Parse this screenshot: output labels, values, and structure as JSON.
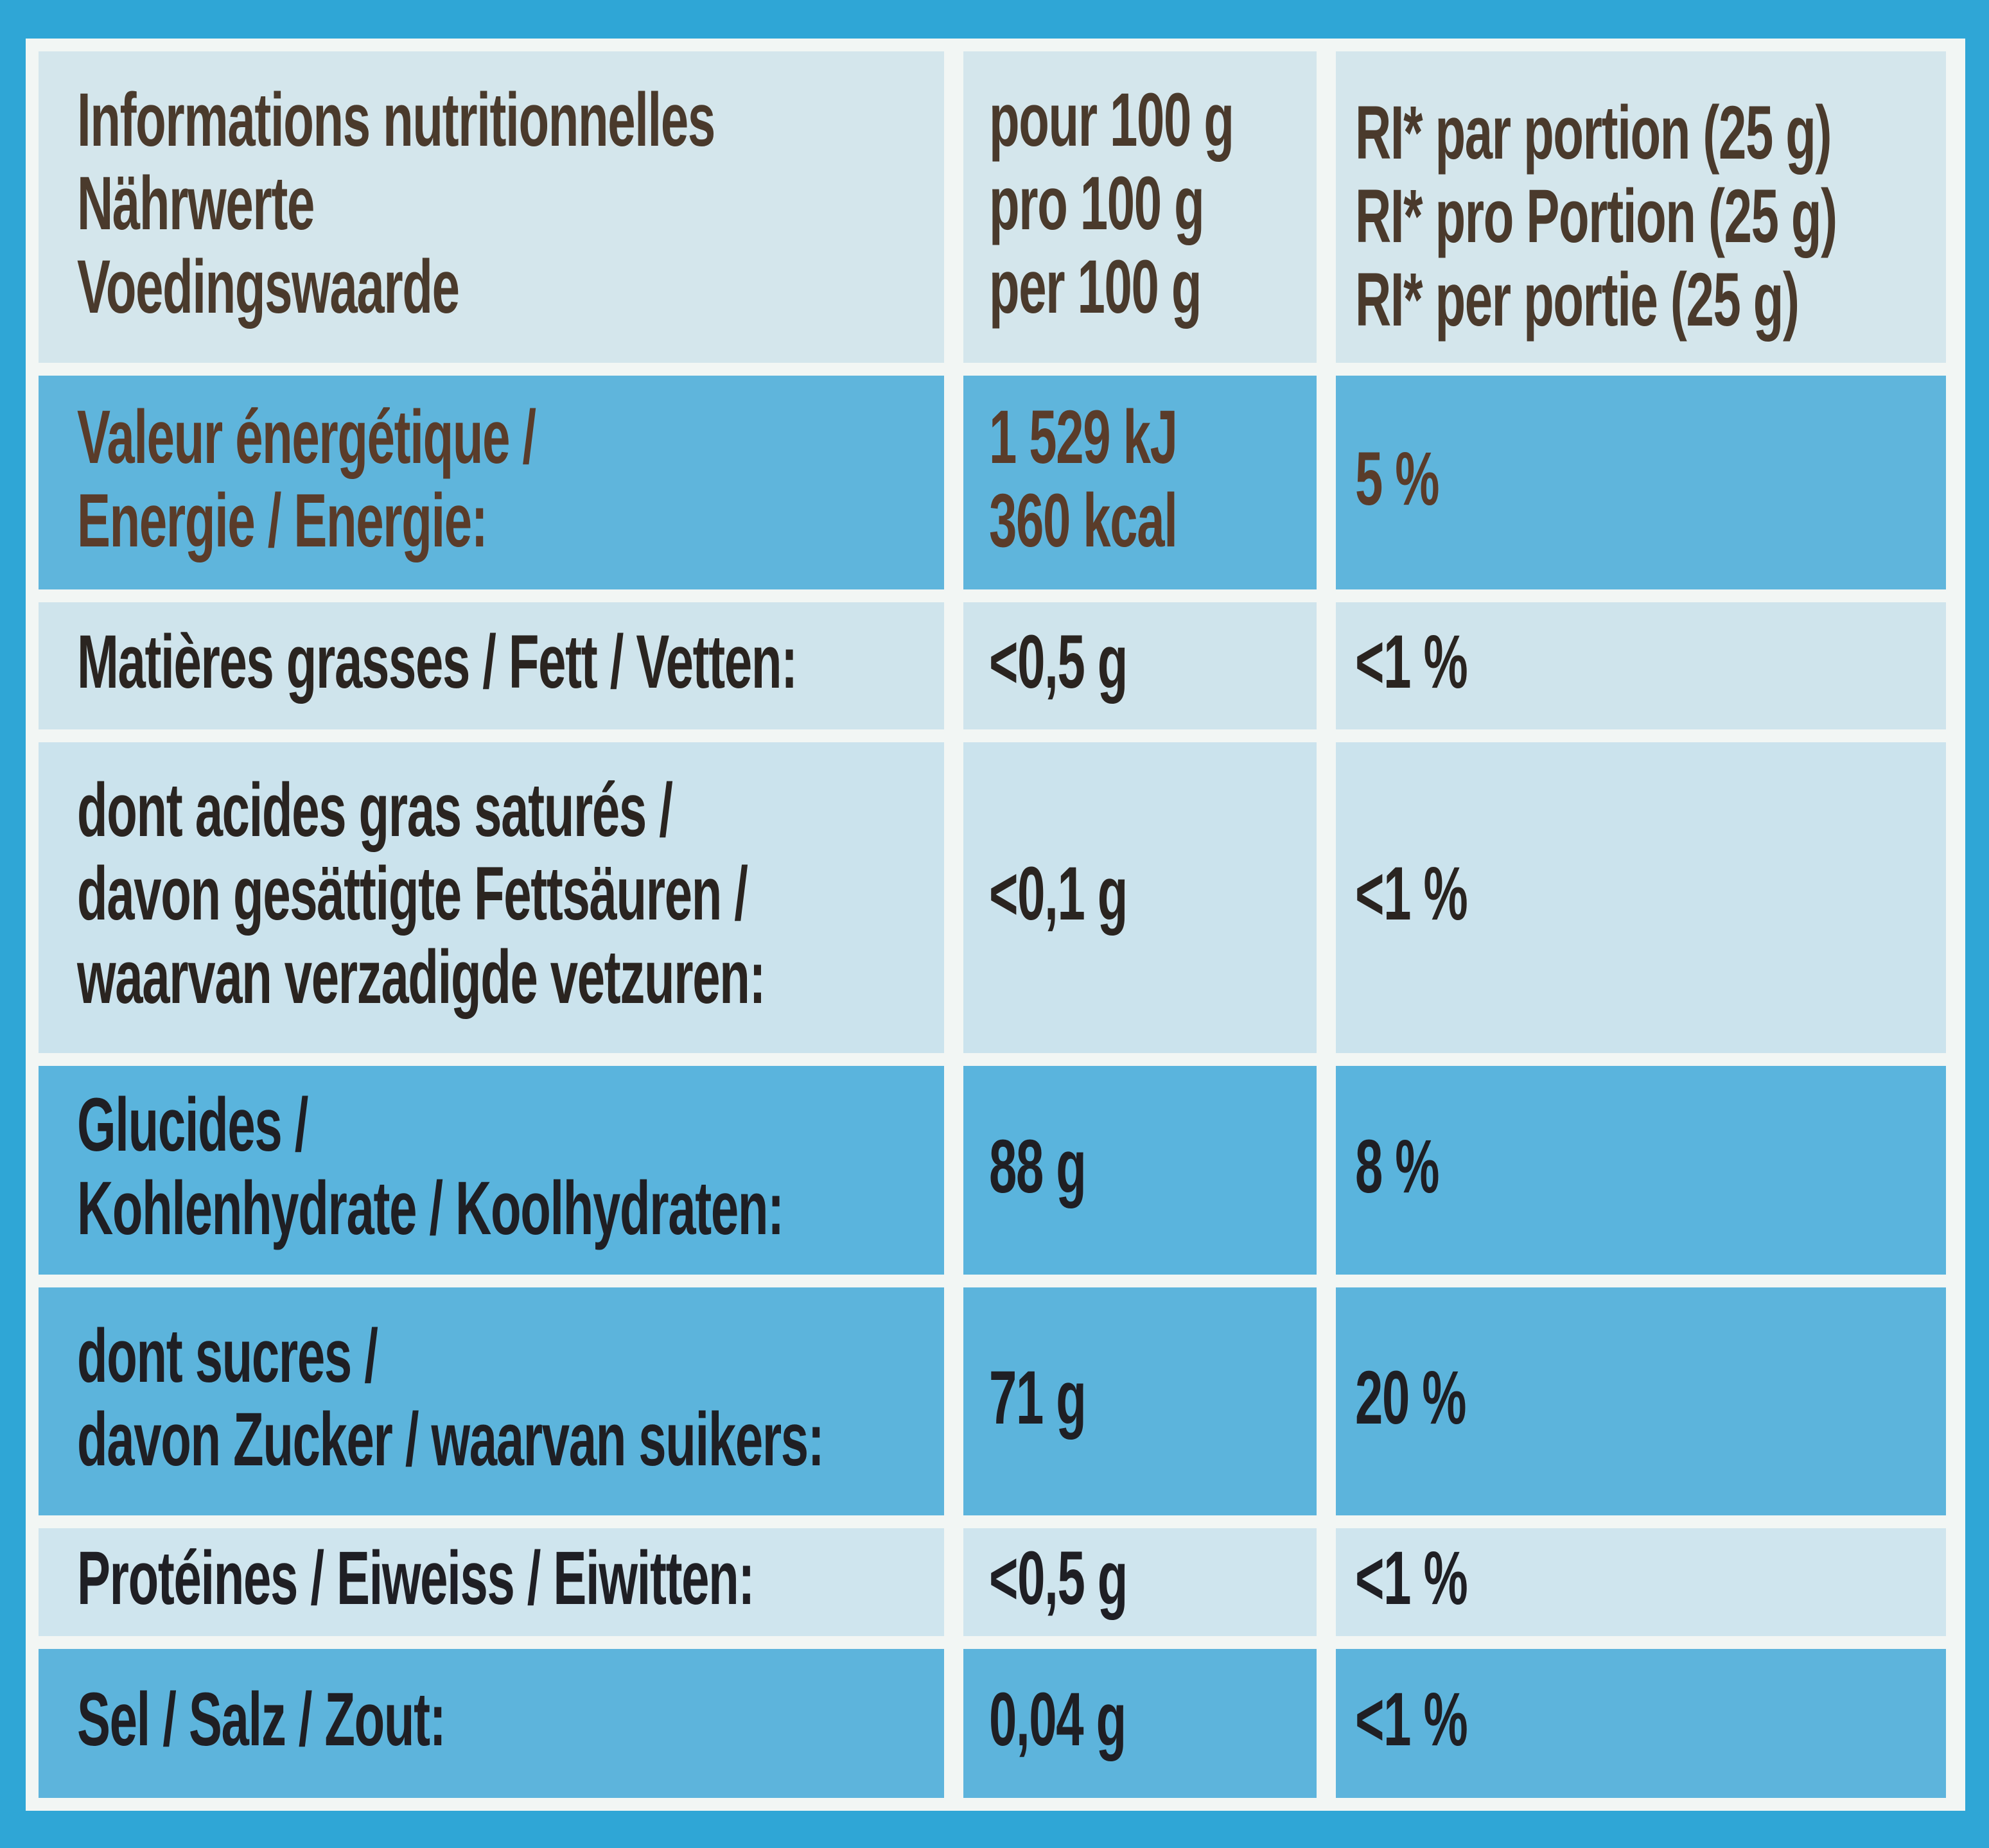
{
  "table": {
    "header": [
      [
        "Informations nutritionnelles",
        "Nährwerte",
        "Voedingswaarde"
      ],
      [
        "pour 100 g",
        "pro 100 g",
        "per 100 g"
      ],
      [
        "RI* par portion (25 g)",
        "RI* pro Portion (25 g)",
        "RI* per portie (25 g)"
      ]
    ],
    "rows": [
      [
        [
          "Valeur énergétique /",
          "Energie / Energie:"
        ],
        [
          "1 529 kJ",
          "360 kcal"
        ],
        [
          "5 %"
        ]
      ],
      [
        [
          "Matières grasses / Fett / Vetten:"
        ],
        [
          "<0,5 g"
        ],
        [
          "<1 %"
        ]
      ],
      [
        [
          "dont acides gras saturés /",
          "davon gesättigte Fettsäuren /",
          "waarvan verzadigde vetzuren:"
        ],
        [
          "<0,1 g"
        ],
        [
          "<1 %"
        ]
      ],
      [
        [
          "Glucides /",
          "Kohlenhydrate / Koolhydraten:"
        ],
        [
          "88 g"
        ],
        [
          "8 %"
        ]
      ],
      [
        [
          "dont sucres /",
          "davon Zucker / waarvan suikers:"
        ],
        [
          "71 g"
        ],
        [
          "20 %"
        ]
      ],
      [
        [
          "Protéines / Eiweiss / Eiwitten:"
        ],
        [
          "<0,5 g"
        ],
        [
          "<1 %"
        ]
      ],
      [
        [
          "Sel / Salz / Zout:"
        ],
        [
          "0,04 g"
        ],
        [
          "<1 %"
        ]
      ]
    ]
  }
}
